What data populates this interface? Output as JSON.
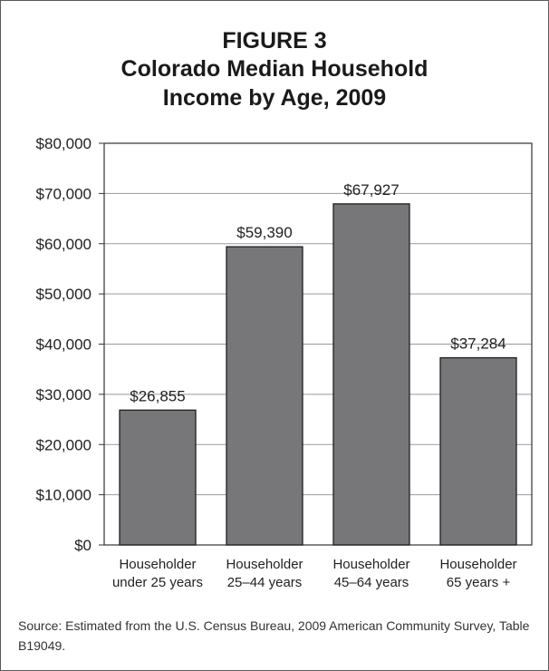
{
  "figure": {
    "label": "FIGURE 3",
    "title_line1": "Colorado Median Household",
    "title_line2": "Income by Age, 2009"
  },
  "chart_data": {
    "type": "bar",
    "title": "Colorado Median Household Income by Age, 2009",
    "categories": [
      [
        "Householder",
        "under 25 years"
      ],
      [
        "Householder",
        "25–44 years"
      ],
      [
        "Householder",
        "45–64 years"
      ],
      [
        "Householder",
        "65 years +"
      ]
    ],
    "values": [
      26855,
      59390,
      67927,
      37284
    ],
    "value_labels": [
      "$26,855",
      "$59,390",
      "$67,927",
      "$37,284"
    ],
    "ylim": [
      0,
      80000
    ],
    "yticks": [
      0,
      10000,
      20000,
      30000,
      40000,
      50000,
      60000,
      70000,
      80000
    ],
    "ytick_labels": [
      "$0",
      "$10,000",
      "$20,000",
      "$30,000",
      "$40,000",
      "$50,000",
      "$60,000",
      "$70,000",
      "$80,000"
    ],
    "grid": true,
    "bar_color": "#77777a"
  },
  "source": "Source: Estimated from the U.S. Census Bureau, 2009 American Community Survey, Table B19049."
}
